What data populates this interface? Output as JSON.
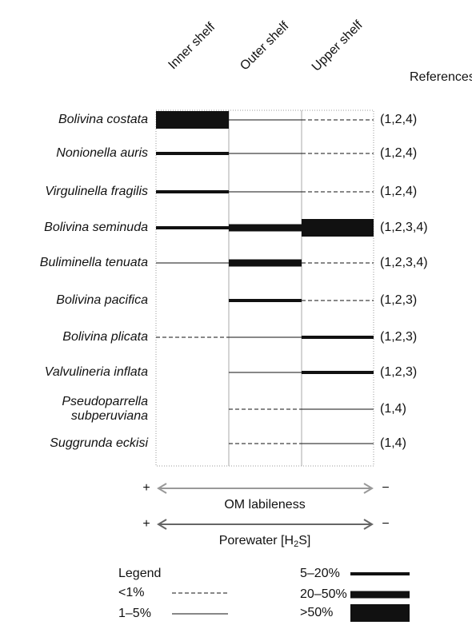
{
  "zones": [
    "Inner shelf",
    "Outer shelf",
    "Upper shelf"
  ],
  "references_header": "References",
  "rows": [
    {
      "species": [
        "Bolivina costata"
      ],
      "cells": [
        ">50%",
        "1–5%",
        "<1%"
      ],
      "references": "(1,2,4)"
    },
    {
      "species": [
        "Nonionella auris"
      ],
      "cells": [
        "5–20%",
        "1–5%",
        "<1%"
      ],
      "references": "(1,2,4)"
    },
    {
      "species": [
        "Virgulinella fragilis"
      ],
      "cells": [
        "5–20%",
        "1–5%",
        "<1%"
      ],
      "references": "(1,2,4)"
    },
    {
      "species": [
        "Bolivina seminuda"
      ],
      "cells": [
        "5–20%",
        "20–50%",
        ">50%"
      ],
      "references": "(1,2,3,4)"
    },
    {
      "species": [
        "Buliminella tenuata"
      ],
      "cells": [
        "1–5%",
        "20–50%",
        "<1%"
      ],
      "references": "(1,2,3,4)"
    },
    {
      "species": [
        "Bolivina pacifica"
      ],
      "cells": [
        null,
        "5–20%",
        "<1%"
      ],
      "references": "(1,2,3)"
    },
    {
      "species": [
        "Bolivina plicata"
      ],
      "cells": [
        "<1%",
        "1–5%",
        "5–20%"
      ],
      "references": "(1,2,3)"
    },
    {
      "species": [
        "Valvulineria inflata"
      ],
      "cells": [
        null,
        "1–5%",
        "5–20%"
      ],
      "references": "(1,2,3)"
    },
    {
      "species": [
        "Pseudoparrella",
        "subperuviana"
      ],
      "cells": [
        null,
        "<1%",
        "1–5%"
      ],
      "references": "(1,4)"
    },
    {
      "species": [
        "Suggrunda eckisi"
      ],
      "cells": [
        null,
        "<1%",
        "1–5%"
      ],
      "references": "(1,4)"
    }
  ],
  "gradients": [
    {
      "plus": "+",
      "minus": "−",
      "label": [
        "OM labileness"
      ]
    },
    {
      "plus": "+",
      "minus": "−",
      "label": [
        "Porewater [H",
        "2",
        "S]"
      ]
    }
  ],
  "legend": {
    "title": "Legend",
    "items": [
      "<1%",
      "1–5%",
      "5–20%",
      "20–50%",
      ">50%"
    ]
  }
}
